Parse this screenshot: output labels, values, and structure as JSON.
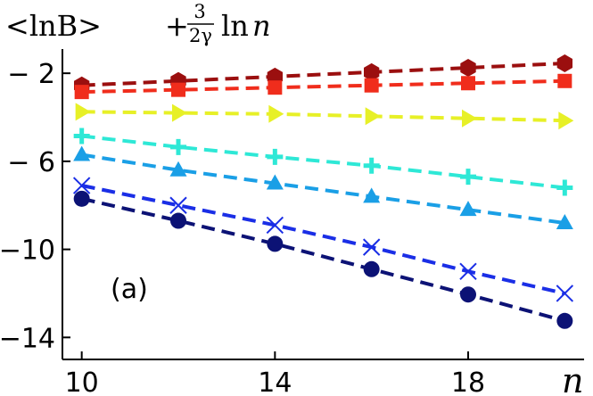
{
  "chart_data": {
    "type": "line",
    "title": {
      "lhs": "<lnB>",
      "plus": "+",
      "frac_num": "3",
      "frac_den": "2γ",
      "ln": "ln",
      "var": "n"
    },
    "panel_label": "(a)",
    "xlabel": "n",
    "ylabel": "",
    "xlim": [
      9.6,
      20.4
    ],
    "ylim": [
      -15,
      -0.9
    ],
    "xticks": [
      10,
      14,
      18
    ],
    "xtick_labels": [
      "10",
      "14",
      "18"
    ],
    "yticks": [
      -2,
      -6,
      -10,
      -14
    ],
    "ytick_labels": [
      "− 2",
      "− 6",
      "−10",
      "−14"
    ],
    "legend": "none",
    "grid": false,
    "x": [
      10,
      12,
      14,
      16,
      18,
      20
    ],
    "series": [
      {
        "color": "#9b0f0f",
        "marker": "hexagon",
        "values": [
          -2.55,
          -2.35,
          -2.15,
          -1.95,
          -1.75,
          -1.55
        ]
      },
      {
        "color": "#f02d1c",
        "marker": "square",
        "values": [
          -2.85,
          -2.75,
          -2.65,
          -2.55,
          -2.45,
          -2.35
        ]
      },
      {
        "color": "#e7f027",
        "marker": "triangle-right",
        "values": [
          -3.75,
          -3.8,
          -3.85,
          -3.95,
          -4.05,
          -4.15
        ]
      },
      {
        "color": "#2ee8d6",
        "marker": "plus",
        "values": [
          -4.85,
          -5.35,
          -5.8,
          -6.2,
          -6.7,
          -7.2
        ]
      },
      {
        "color": "#1a9fe6",
        "marker": "triangle-up",
        "values": [
          -5.7,
          -6.4,
          -7.0,
          -7.6,
          -8.2,
          -8.8
        ]
      },
      {
        "color": "#1a2ee6",
        "marker": "x",
        "values": [
          -7.1,
          -8.0,
          -8.9,
          -9.9,
          -11.0,
          -12.0
        ]
      },
      {
        "color": "#0c1275",
        "marker": "circle",
        "values": [
          -7.7,
          -8.7,
          -9.75,
          -10.9,
          -12.05,
          -13.25
        ]
      }
    ]
  }
}
